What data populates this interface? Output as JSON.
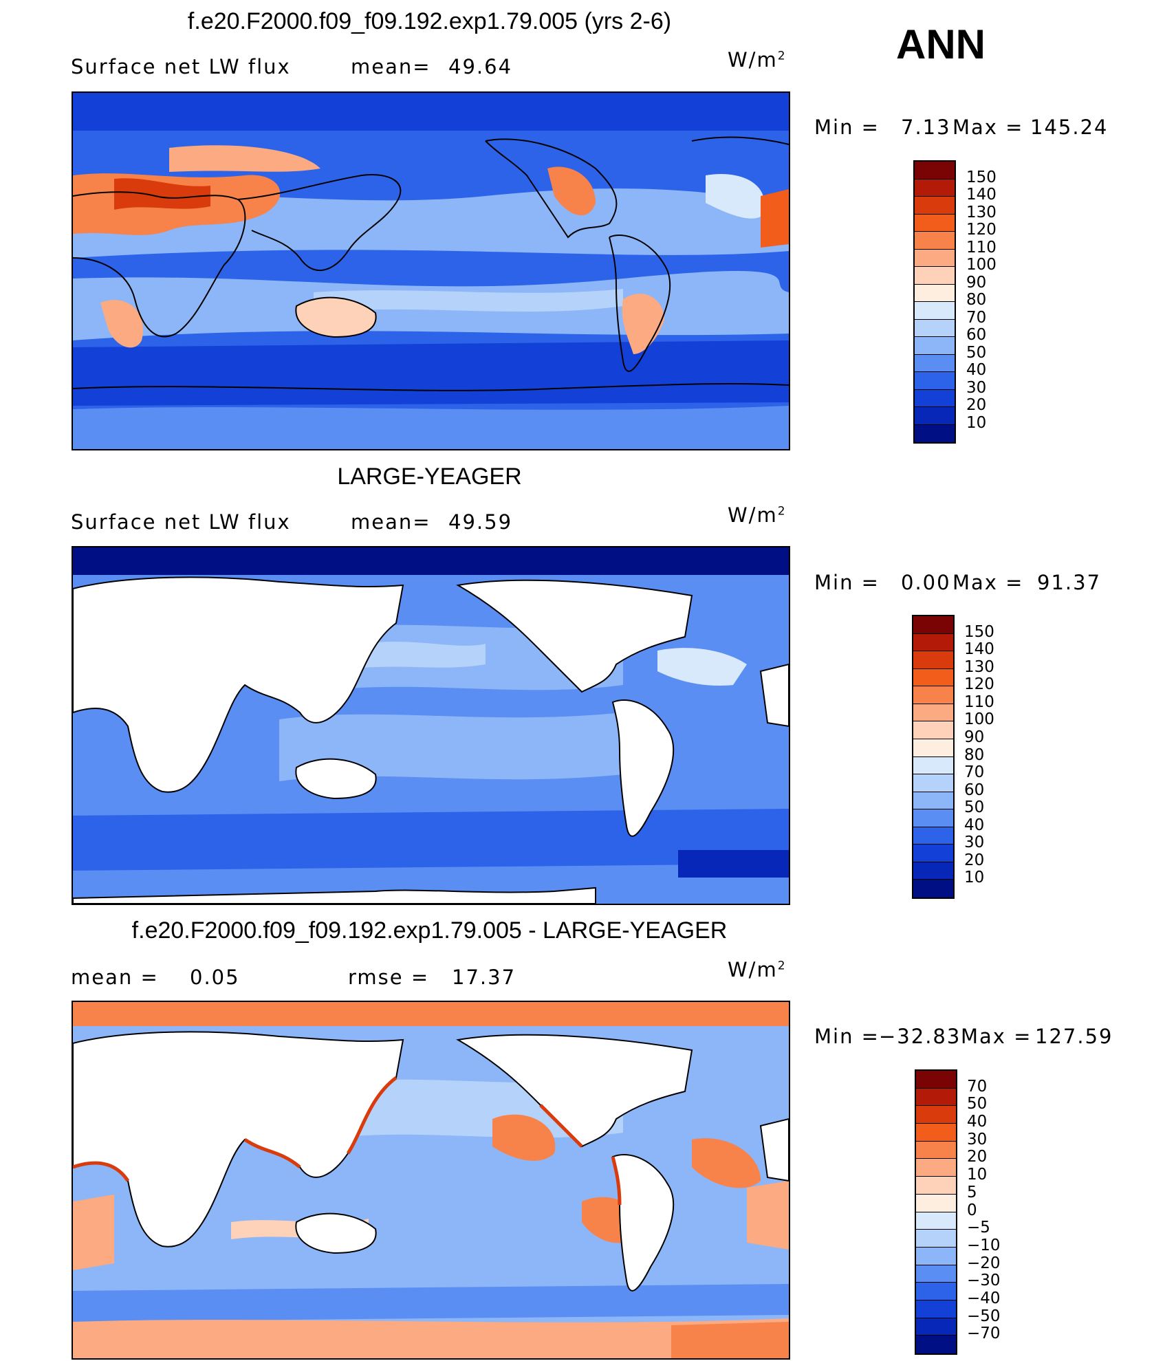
{
  "season": "ANN",
  "panels": [
    {
      "title": "f.e20.F2000.f09_f09.192.exp1.79.005 (yrs 2-6)",
      "left_text": "Surface net LW flux",
      "stat1_label": "mean=",
      "stat1_value": "49.64",
      "unit_base": "W/m",
      "unit_exp": "2",
      "minmax": {
        "min_label": "Min =",
        "min": "7.13",
        "max_label": "Max =",
        "max": "145.24"
      },
      "colorbar_labels": [
        "150",
        "140",
        "130",
        "120",
        "110",
        "100",
        "90",
        "80",
        "70",
        "60",
        "50",
        "40",
        "30",
        "20",
        "10"
      ],
      "colors": [
        "#7a0403",
        "#b31a07",
        "#d93b0d",
        "#f25d1c",
        "#f7834a",
        "#fbaa81",
        "#fdd2b8",
        "#fdeee0",
        "#d8e9fb",
        "#b5d3fa",
        "#8cb6f7",
        "#5b8ef2",
        "#2d63e8",
        "#1340d6",
        "#0627b8",
        "#000f84"
      ]
    },
    {
      "title": "LARGE-YEAGER",
      "left_text": "Surface net LW flux",
      "stat1_label": "mean=",
      "stat1_value": "49.59",
      "unit_base": "W/m",
      "unit_exp": "2",
      "minmax": {
        "min_label": "Min =",
        "min": "0.00",
        "max_label": "Max =",
        "max": "91.37"
      },
      "colorbar_labels": [
        "150",
        "140",
        "130",
        "120",
        "110",
        "100",
        "90",
        "80",
        "70",
        "60",
        "50",
        "40",
        "30",
        "20",
        "10"
      ],
      "colors": [
        "#7a0403",
        "#b31a07",
        "#d93b0d",
        "#f25d1c",
        "#f7834a",
        "#fbaa81",
        "#fdd2b8",
        "#fdeee0",
        "#d8e9fb",
        "#b5d3fa",
        "#8cb6f7",
        "#5b8ef2",
        "#2d63e8",
        "#1340d6",
        "#0627b8",
        "#000f84"
      ]
    },
    {
      "title": "f.e20.F2000.f09_f09.192.exp1.79.005 - LARGE-YEAGER",
      "left_label": "mean =",
      "left_value": "0.05",
      "stat1_label": "rmse =",
      "stat1_value": "17.37",
      "unit_base": "W/m",
      "unit_exp": "2",
      "minmax": {
        "min_label": "Min =",
        "min": "−32.83",
        "max_label": "Max =",
        "max": "127.59"
      },
      "colorbar_labels": [
        "70",
        "50",
        "40",
        "30",
        "20",
        "10",
        "5",
        "0",
        "−5",
        "−10",
        "−20",
        "−30",
        "−40",
        "−50",
        "−70"
      ],
      "colors": [
        "#7a0403",
        "#b31a07",
        "#d93b0d",
        "#f25d1c",
        "#f7834a",
        "#fbaa81",
        "#fdd2b8",
        "#fdeee0",
        "#d8e9fb",
        "#b5d3fa",
        "#8cb6f7",
        "#5b8ef2",
        "#2d63e8",
        "#1340d6",
        "#0627b8",
        "#000f84"
      ]
    }
  ]
}
